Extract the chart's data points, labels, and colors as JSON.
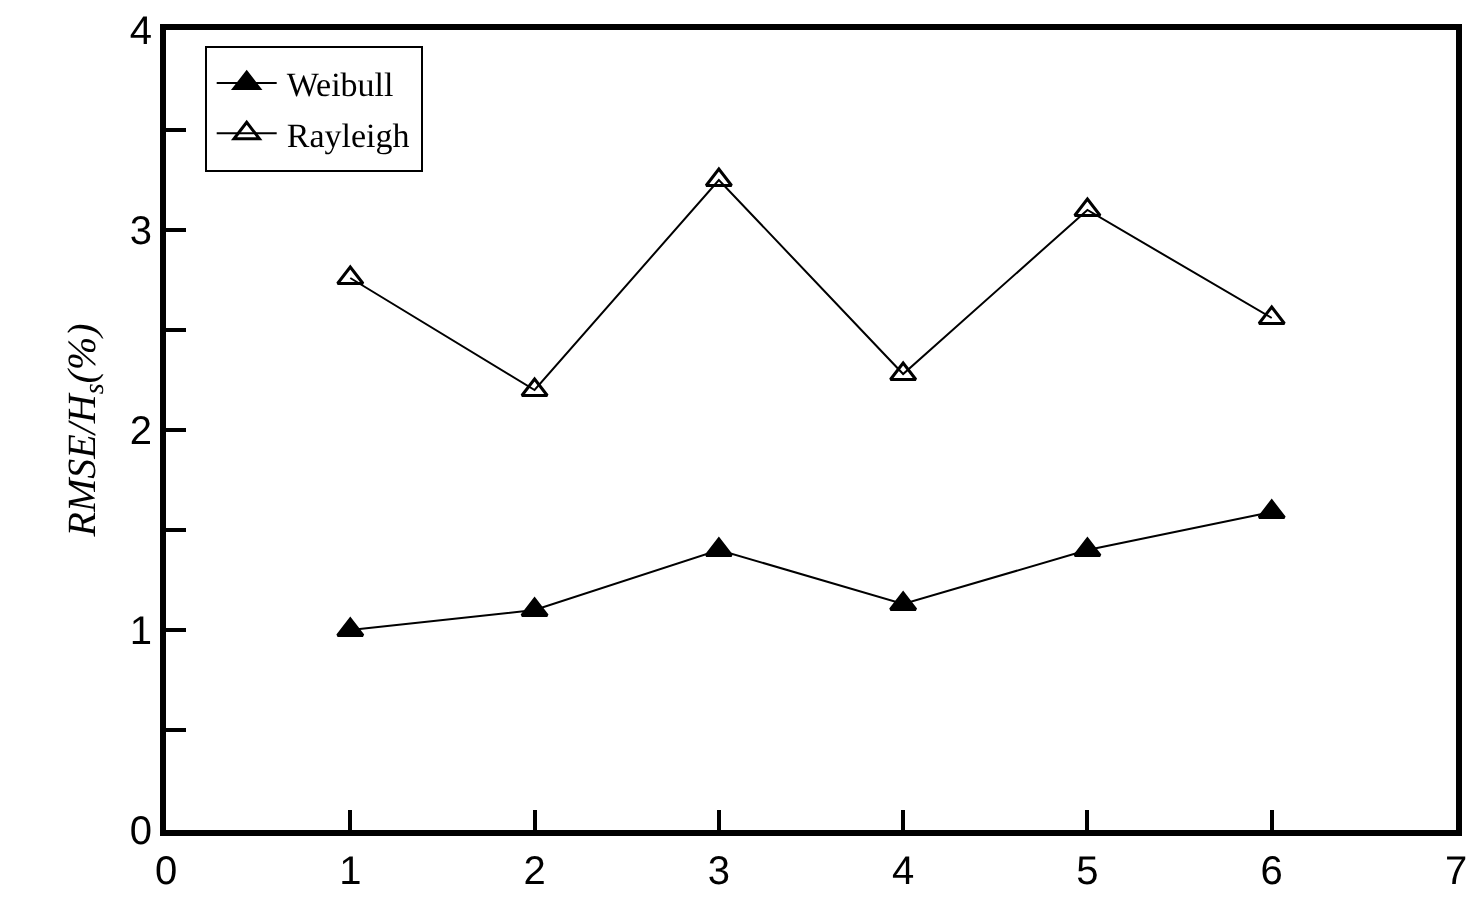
{
  "chart_data": {
    "type": "line",
    "ylabel": "RMSE/H$_{s}$(%)",
    "x": [
      1,
      2,
      3,
      4,
      5,
      6
    ],
    "series": [
      {
        "name": "Weibull",
        "color": "#000000",
        "values": [
          1.0,
          1.1,
          1.4,
          1.13,
          1.4,
          1.59
        ]
      },
      {
        "name": "Rayleigh",
        "color": "#000000",
        "values": [
          2.76,
          2.2,
          3.25,
          2.28,
          3.1,
          2.56
        ]
      }
    ],
    "xlim": [
      0,
      7
    ],
    "xticks": [
      0,
      1,
      2,
      3,
      4,
      5,
      6,
      7
    ],
    "ylim": [
      0,
      4
    ],
    "yticks": [
      0,
      {
        "value": 0.5,
        "label": null
      },
      1,
      {
        "value": 1.5,
        "label": null
      },
      2,
      {
        "value": 2.5,
        "label": null
      },
      3,
      {
        "value": 3.5,
        "label": null
      },
      4
    ],
    "grid": false,
    "legend": "top left",
    "marker": "triangle",
    "line_style": "solid"
  }
}
